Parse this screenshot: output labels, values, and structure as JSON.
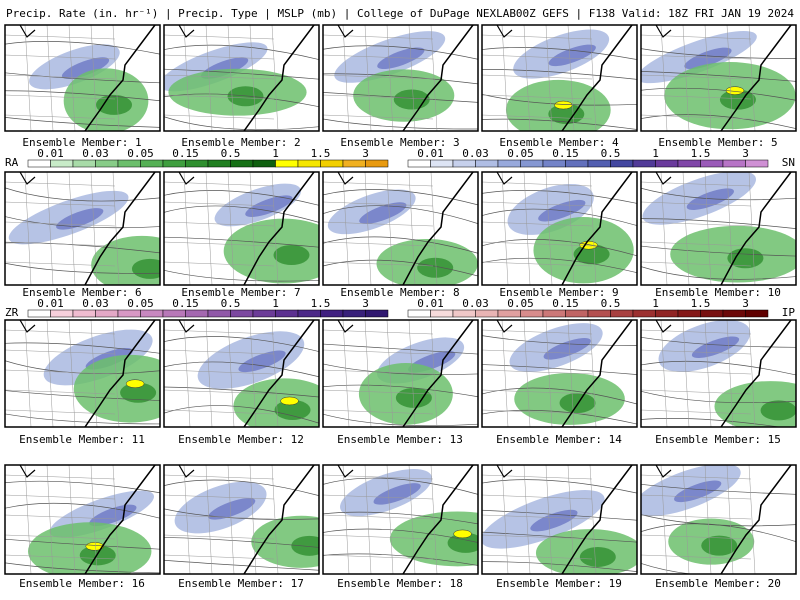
{
  "header": {
    "left": "Precip. Rate (in. hr⁻¹) | Precip. Type | MSLP (mb) | College of DuPage NEXLAB",
    "right": "00Z GEFS | F138 Valid: 18Z FRI JAN 19 2024"
  },
  "members": [
    "Ensemble Member: 1",
    "Ensemble Member: 2",
    "Ensemble Member: 3",
    "Ensemble Member: 4",
    "Ensemble Member: 5",
    "Ensemble Member: 6",
    "Ensemble Member: 7",
    "Ensemble Member: 8",
    "Ensemble Member: 9",
    "Ensemble Member: 10",
    "Ensemble Member: 11",
    "Ensemble Member: 12",
    "Ensemble Member: 13",
    "Ensemble Member: 14",
    "Ensemble Member: 15",
    "Ensemble Member: 16",
    "Ensemble Member: 17",
    "Ensemble Member: 18",
    "Ensemble Member: 19",
    "Ensemble Member: 20"
  ],
  "legends": [
    {
      "code": "RA",
      "ticks": [
        "0.01",
        "0.03",
        "0.05",
        "0.15",
        "0.5",
        "1",
        "1.5",
        "3"
      ]
    },
    {
      "code": "SN",
      "ticks": [
        "0.01",
        "0.03",
        "0.05",
        "0.15",
        "0.5",
        "1",
        "1.5",
        "3"
      ]
    },
    {
      "code": "ZR",
      "ticks": [
        "0.01",
        "0.03",
        "0.05",
        "0.15",
        "0.5",
        "1",
        "1.5",
        "3"
      ]
    },
    {
      "code": "IP",
      "ticks": [
        "0.01",
        "0.03",
        "0.05",
        "0.15",
        "0.5",
        "1",
        "1.5",
        "3"
      ]
    }
  ]
}
